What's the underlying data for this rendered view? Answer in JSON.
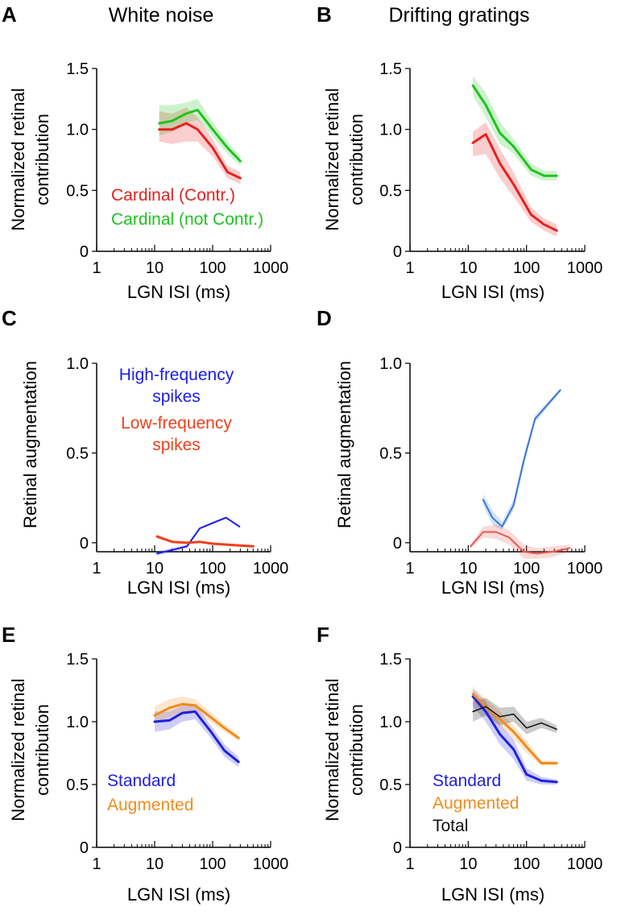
{
  "columns": [
    "White noise",
    "Drifting gratings"
  ],
  "chart_data": [
    {
      "panel": "A",
      "type": "line",
      "xlabel": "LGN ISI (ms)",
      "ylabel": "Normalized retinal contribution",
      "xscale": "log",
      "xlim": [
        1,
        1000
      ],
      "ylim": [
        0,
        1.5
      ],
      "xticks": [
        "1",
        "10",
        "100",
        "1000"
      ],
      "yticks": [
        "0",
        "0.5",
        "1.0",
        "1.5"
      ],
      "grid": false,
      "legend": "lower-left",
      "series": [
        {
          "name": "Cardinal (Contr.)",
          "color": "#e8201e",
          "width": 3,
          "x": [
            12,
            20,
            35,
            55,
            100,
            180,
            300
          ],
          "y": [
            1.0,
            1.0,
            1.05,
            1.0,
            0.85,
            0.65,
            0.6
          ],
          "lo": [
            0.9,
            0.88,
            0.9,
            0.9,
            0.78,
            0.6,
            0.55
          ],
          "hi": [
            1.15,
            1.13,
            1.18,
            1.1,
            0.92,
            0.7,
            0.65
          ]
        },
        {
          "name": "Cardinal (not Contr.)",
          "color": "#1ec41e",
          "width": 3,
          "x": [
            12,
            20,
            35,
            55,
            100,
            180,
            300
          ],
          "y": [
            1.05,
            1.07,
            1.13,
            1.16,
            1.0,
            0.85,
            0.74
          ],
          "lo": [
            0.95,
            0.98,
            1.05,
            1.08,
            0.94,
            0.8,
            0.7
          ],
          "hi": [
            1.2,
            1.2,
            1.22,
            1.25,
            1.06,
            0.9,
            0.78
          ]
        }
      ]
    },
    {
      "panel": "B",
      "type": "line",
      "xlabel": "LGN ISI (ms)",
      "ylabel": "Normalized retinal contribution",
      "xscale": "log",
      "xlim": [
        1,
        1000
      ],
      "ylim": [
        0,
        1.5
      ],
      "xticks": [
        "1",
        "10",
        "100",
        "1000"
      ],
      "yticks": [
        "0",
        "0.5",
        "1.0",
        "1.5"
      ],
      "grid": false,
      "series": [
        {
          "name": "",
          "color": "#1ec41e",
          "width": 3,
          "x": [
            12,
            20,
            35,
            60,
            120,
            200,
            330
          ],
          "y": [
            1.36,
            1.2,
            0.97,
            0.86,
            0.67,
            0.62,
            0.62
          ],
          "lo": [
            1.28,
            1.1,
            0.88,
            0.8,
            0.62,
            0.58,
            0.58
          ],
          "hi": [
            1.44,
            1.3,
            1.06,
            0.92,
            0.72,
            0.66,
            0.66
          ]
        },
        {
          "name": "",
          "color": "#e8201e",
          "width": 3,
          "x": [
            12,
            20,
            35,
            60,
            120,
            200,
            330
          ],
          "y": [
            0.89,
            0.96,
            0.72,
            0.55,
            0.3,
            0.22,
            0.17
          ],
          "lo": [
            0.78,
            0.8,
            0.6,
            0.45,
            0.24,
            0.17,
            0.12
          ],
          "hi": [
            0.98,
            1.06,
            0.84,
            0.65,
            0.36,
            0.27,
            0.22
          ]
        }
      ]
    },
    {
      "panel": "C",
      "type": "line",
      "xlabel": "LGN ISI (ms)",
      "ylabel": "Retinal augmentation",
      "xscale": "log",
      "xlim": [
        1,
        1000
      ],
      "ylim": [
        -0.05,
        1.0
      ],
      "xticks": [
        "1",
        "10",
        "100",
        "1000"
      ],
      "yticks": [
        "0",
        "0.5",
        "1.0"
      ],
      "grid": false,
      "legend": "top-right",
      "series": [
        {
          "name": "High-frequency spikes",
          "color": "#1c1cf0",
          "width": 2,
          "x": [
            11,
            20,
            36,
            60,
            100,
            170,
            290
          ],
          "y": [
            -0.06,
            -0.04,
            -0.02,
            0.08,
            0.11,
            0.14,
            0.09
          ],
          "lo": [
            -0.07,
            -0.05,
            -0.03,
            0.075,
            0.105,
            0.135,
            0.085
          ],
          "hi": [
            -0.05,
            -0.03,
            -0.01,
            0.085,
            0.115,
            0.145,
            0.095
          ]
        },
        {
          "name": "Low-frequency spikes",
          "color": "#f0401c",
          "width": 3,
          "x": [
            11,
            20,
            36,
            60,
            100,
            170,
            290,
            500
          ],
          "y": [
            0.035,
            0.005,
            0.0,
            0.005,
            -0.005,
            -0.01,
            -0.015,
            -0.02
          ],
          "lo": [
            0.025,
            -0.002,
            -0.007,
            -0.002,
            -0.012,
            -0.017,
            -0.022,
            -0.027
          ],
          "hi": [
            0.045,
            0.012,
            0.007,
            0.012,
            0.002,
            -0.003,
            -0.008,
            -0.013
          ]
        }
      ]
    },
    {
      "panel": "D",
      "type": "line",
      "xlabel": "LGN ISI (ms)",
      "ylabel": "Retinal augmentation",
      "xscale": "log",
      "xlim": [
        1,
        1000
      ],
      "ylim": [
        -0.05,
        1.0
      ],
      "xticks": [
        "1",
        "10",
        "100",
        "1000"
      ],
      "yticks": [
        "0",
        "0.5",
        "1.0"
      ],
      "grid": false,
      "series": [
        {
          "name": "",
          "color": "#3a78d6",
          "width": 2,
          "x": [
            18,
            26,
            38,
            60,
            90,
            140,
            380
          ],
          "y": [
            0.24,
            0.14,
            0.09,
            0.21,
            0.46,
            0.69,
            0.85
          ],
          "lo": [
            0.21,
            0.1,
            0.07,
            0.18,
            0.43,
            0.67,
            0.84
          ],
          "hi": [
            0.27,
            0.18,
            0.12,
            0.24,
            0.49,
            0.71,
            0.86
          ]
        },
        {
          "name": "",
          "color": "#e85a52",
          "width": 2,
          "x": [
            11,
            18,
            30,
            50,
            90,
            150,
            280,
            550
          ],
          "y": [
            -0.02,
            0.06,
            0.06,
            0.03,
            -0.05,
            -0.06,
            -0.05,
            -0.03
          ],
          "lo": [
            -0.03,
            0.03,
            0.02,
            -0.01,
            -0.09,
            -0.09,
            -0.08,
            -0.05
          ],
          "hi": [
            -0.01,
            0.09,
            0.1,
            0.07,
            -0.01,
            -0.03,
            -0.02,
            -0.01
          ]
        }
      ]
    },
    {
      "panel": "E",
      "type": "line",
      "xlabel": "LGN ISI (ms)",
      "ylabel": "Normalized retinal contribution",
      "xscale": "log",
      "xlim": [
        1,
        1000
      ],
      "ylim": [
        0,
        1.5
      ],
      "xticks": [
        "1",
        "10",
        "100",
        "1000"
      ],
      "yticks": [
        "0",
        "0.5",
        "1.0",
        "1.5"
      ],
      "grid": false,
      "legend": "lower-left",
      "series": [
        {
          "name": "Standard",
          "color": "#2020e0",
          "width": 3,
          "x": [
            10,
            18,
            30,
            50,
            90,
            160,
            280
          ],
          "y": [
            1.0,
            1.01,
            1.07,
            1.08,
            0.93,
            0.77,
            0.68
          ],
          "lo": [
            0.92,
            0.94,
            1.0,
            1.02,
            0.88,
            0.72,
            0.64
          ],
          "hi": [
            1.08,
            1.08,
            1.13,
            1.14,
            0.98,
            0.82,
            0.72
          ]
        },
        {
          "name": "Augmented",
          "color": "#f08c1e",
          "width": 3,
          "x": [
            10,
            18,
            30,
            50,
            90,
            160,
            280
          ],
          "y": [
            1.05,
            1.11,
            1.14,
            1.13,
            1.04,
            0.95,
            0.87
          ],
          "lo": [
            0.98,
            1.04,
            1.08,
            1.08,
            1.0,
            0.92,
            0.85
          ],
          "hi": [
            1.12,
            1.18,
            1.2,
            1.18,
            1.08,
            0.98,
            0.9
          ]
        }
      ]
    },
    {
      "panel": "F",
      "type": "line",
      "xlabel": "LGN ISI (ms)",
      "ylabel": "Normalized retinal contribution",
      "xscale": "log",
      "xlim": [
        1,
        1000
      ],
      "ylim": [
        0,
        1.5
      ],
      "xticks": [
        "1",
        "10",
        "100",
        "1000"
      ],
      "yticks": [
        "0",
        "0.5",
        "1.0",
        "1.5"
      ],
      "grid": false,
      "legend": "lower-left",
      "series": [
        {
          "name": "Standard",
          "color": "#2020e0",
          "width": 3,
          "x": [
            12,
            20,
            35,
            60,
            100,
            180,
            330
          ],
          "y": [
            1.2,
            1.08,
            0.9,
            0.78,
            0.58,
            0.53,
            0.52
          ],
          "lo": [
            1.12,
            1.0,
            0.82,
            0.7,
            0.53,
            0.5,
            0.5
          ],
          "hi": [
            1.26,
            1.16,
            0.98,
            0.86,
            0.63,
            0.56,
            0.54
          ]
        },
        {
          "name": "Augmented",
          "color": "#f08c1e",
          "width": 3,
          "x": [
            12,
            20,
            35,
            60,
            100,
            180,
            330
          ],
          "y": [
            1.22,
            1.12,
            1.02,
            0.92,
            0.8,
            0.67,
            0.67
          ],
          "lo": [
            1.16,
            1.06,
            0.96,
            0.87,
            0.75,
            0.65,
            0.65
          ],
          "hi": [
            1.28,
            1.18,
            1.08,
            0.97,
            0.85,
            0.69,
            0.69
          ]
        },
        {
          "name": "Total",
          "color": "#111111",
          "width": 1.5,
          "x": [
            12,
            20,
            35,
            60,
            100,
            180,
            330
          ],
          "y": [
            1.08,
            1.12,
            1.04,
            1.06,
            0.95,
            0.99,
            0.94
          ],
          "lo": [
            1.0,
            1.05,
            0.97,
            1.0,
            0.9,
            0.95,
            0.91
          ],
          "hi": [
            1.16,
            1.19,
            1.11,
            1.12,
            1.0,
            1.03,
            0.97
          ]
        }
      ]
    }
  ]
}
